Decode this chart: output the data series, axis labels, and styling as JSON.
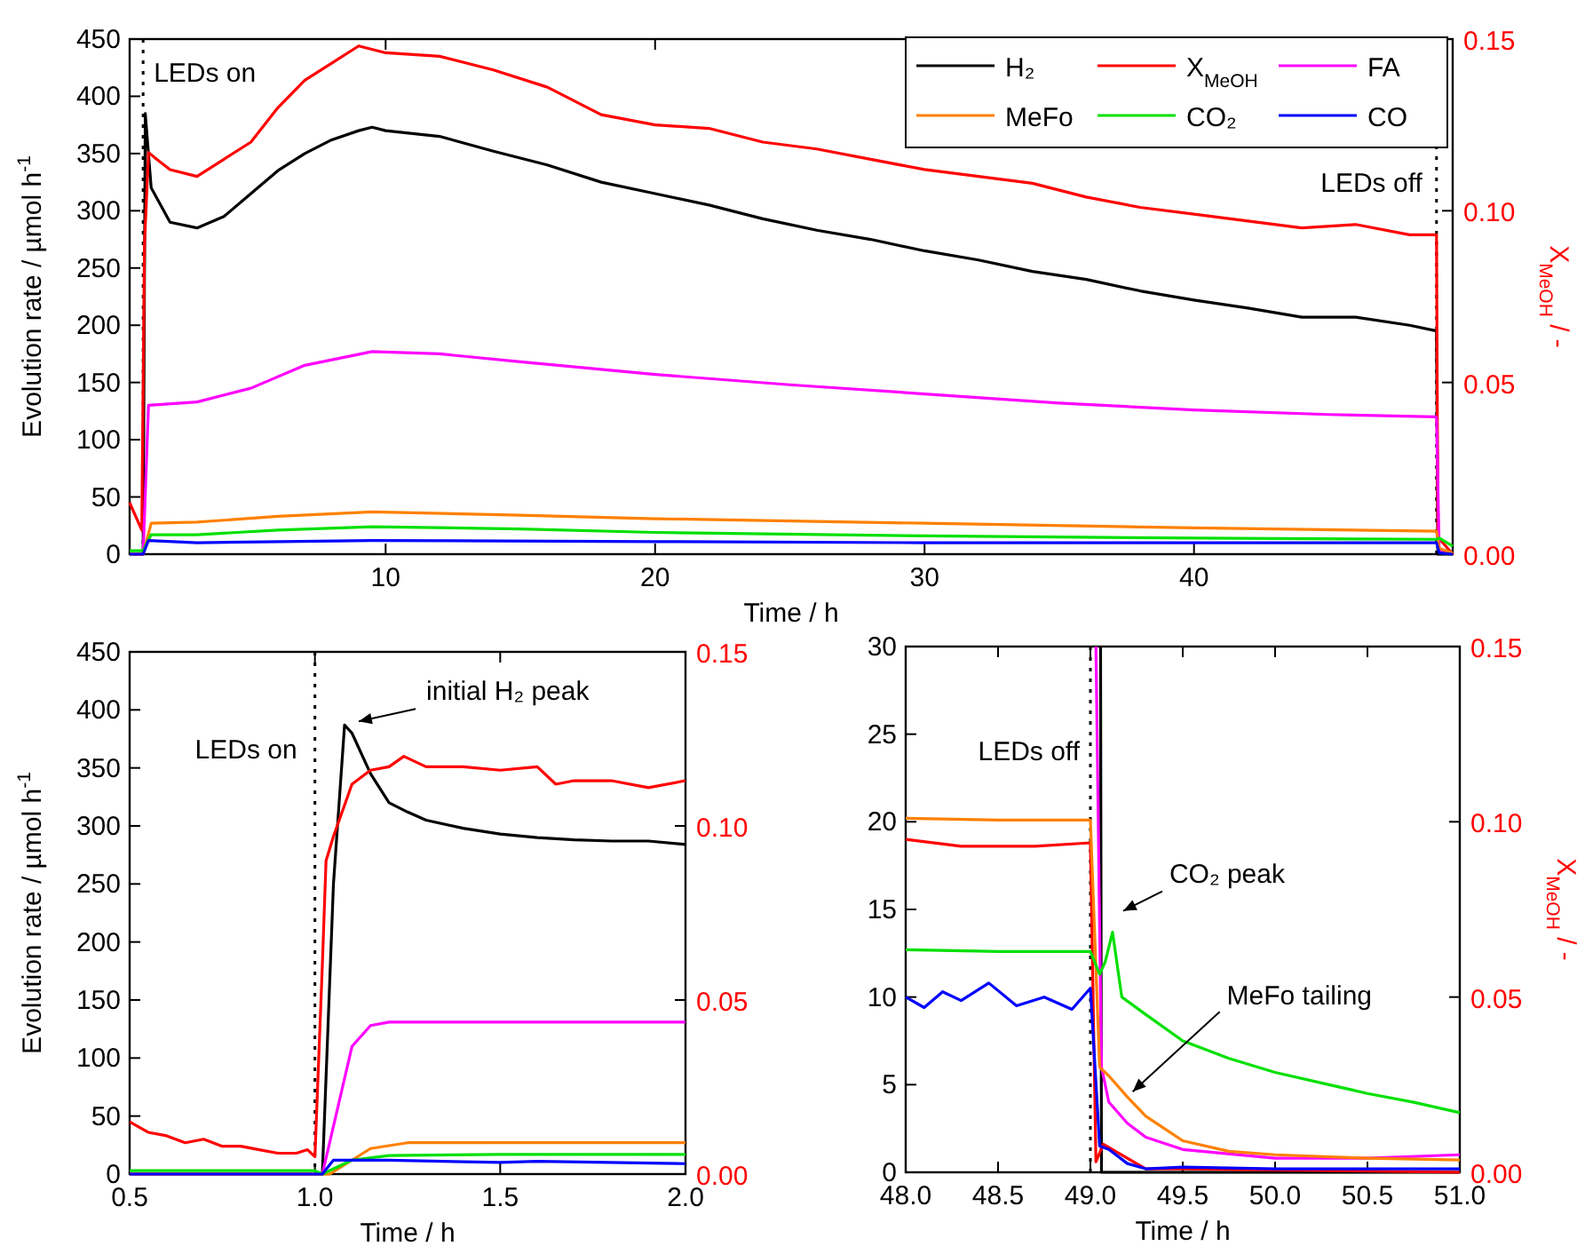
{
  "chart_data": [
    {
      "type": "line",
      "xlabel": "Time / h",
      "ylabel": "Evolution rate / µmol h$^{-1}$",
      "y2label": "X$_{MeOH}$ / -",
      "xlim": [
        0.5,
        49.6
      ],
      "ylim": [
        0,
        450
      ],
      "y2lim": [
        0,
        0.15
      ],
      "xticks": [
        10,
        20,
        30,
        40
      ],
      "yticks": [
        0,
        50,
        100,
        150,
        200,
        250,
        300,
        350,
        400,
        450
      ],
      "y2ticks": [
        {
          "value": 0,
          "label": "0.00"
        },
        {
          "value": 0.05,
          "label": "0.05"
        },
        {
          "value": 0.1,
          "label": "0.10"
        },
        {
          "value": 0.15,
          "label": "0.15"
        }
      ],
      "legend": "top right",
      "ref_lines": [
        {
          "axis": "x",
          "value": 1,
          "label": "LEDs on",
          "line_style": "dotted"
        },
        {
          "axis": "x",
          "value": 49,
          "label": "LEDs off",
          "line_style": "dotted"
        }
      ],
      "series": [
        {
          "name": "H₂",
          "color": "#000000",
          "x": [
            0.5,
            0.9,
            1.0,
            1.08,
            1.3,
            2,
            3,
            4,
            5,
            6,
            7,
            8,
            9,
            9.5,
            10,
            12,
            14,
            16,
            18,
            20,
            22,
            24,
            26,
            28,
            30,
            32,
            34,
            36,
            38,
            40,
            42,
            44,
            46,
            48,
            49,
            49.05,
            49.6
          ],
          "values": [
            0,
            0,
            0,
            385,
            320,
            290,
            285,
            295,
            315,
            335,
            350,
            362,
            370,
            373,
            370,
            365,
            352,
            340,
            325,
            315,
            305,
            293,
            283,
            275,
            265,
            257,
            247,
            240,
            230,
            222,
            215,
            207,
            207,
            200,
            195,
            0,
            0
          ]
        },
        {
          "name": "X$_{MeOH}$",
          "color": "#ff0000",
          "axis": "y2",
          "x": [
            0.5,
            0.95,
            1.05,
            1.2,
            1.5,
            2,
            3,
            4,
            5,
            6,
            7,
            8,
            9,
            10,
            12,
            14,
            16,
            18,
            20,
            22,
            24,
            26,
            28,
            30,
            32,
            34,
            36,
            38,
            40,
            42,
            44,
            46,
            48,
            49,
            49.05,
            49.6
          ],
          "values": [
            0.015,
            0.007,
            0.09,
            0.117,
            0.115,
            0.112,
            0.11,
            0.115,
            0.12,
            0.13,
            0.138,
            0.143,
            0.148,
            0.146,
            0.145,
            0.141,
            0.136,
            0.128,
            0.125,
            0.124,
            0.12,
            0.118,
            0.115,
            0.112,
            0.11,
            0.108,
            0.104,
            0.101,
            0.099,
            0.097,
            0.095,
            0.096,
            0.093,
            0.093,
            0.005,
            0
          ]
        },
        {
          "name": "FA",
          "color": "#ff00ff",
          "x": [
            0.5,
            1,
            1.2,
            3,
            5,
            7,
            9.5,
            12,
            15,
            20,
            25,
            30,
            35,
            40,
            45,
            49,
            49.1,
            49.6
          ],
          "values": [
            0,
            0,
            130,
            133,
            145,
            165,
            177,
            175,
            168,
            157,
            148,
            140,
            132,
            126,
            122,
            120,
            3,
            1
          ]
        },
        {
          "name": "MeFo",
          "color": "#ff8000",
          "x": [
            0.5,
            1,
            1.3,
            3,
            6,
            9.5,
            15,
            20,
            30,
            40,
            49,
            49.1,
            49.6
          ],
          "values": [
            0,
            0,
            27,
            28,
            33,
            37,
            34,
            31,
            27,
            23,
            20,
            5,
            1
          ]
        },
        {
          "name": "CO₂",
          "color": "#00e000",
          "x": [
            0.5,
            1,
            1.3,
            3,
            6,
            9.5,
            15,
            20,
            30,
            40,
            49,
            49.1,
            49.6
          ],
          "values": [
            3,
            3,
            17,
            17,
            21,
            24,
            22,
            19,
            16,
            14,
            13,
            14,
            7
          ]
        },
        {
          "name": "CO",
          "color": "#0000ff",
          "x": [
            0.5,
            1,
            1.2,
            3,
            9.5,
            20,
            30,
            40,
            49,
            49.1,
            49.6
          ],
          "values": [
            0,
            0,
            12,
            10,
            12,
            11,
            10,
            10,
            10,
            1,
            0
          ]
        }
      ]
    },
    {
      "type": "line",
      "xlabel": "Time / h",
      "ylabel": "Evolution rate / µmol h$^{-1}$",
      "xlim": [
        0.5,
        2.0
      ],
      "ylim": [
        0,
        450
      ],
      "y2lim": [
        0,
        0.15
      ],
      "xticks": [
        {
          "value": 0.5,
          "label": "0.5"
        },
        {
          "value": 1,
          "label": "1.0"
        },
        {
          "value": 1.5,
          "label": "1.5"
        },
        {
          "value": 2,
          "label": "2.0"
        }
      ],
      "yticks": [
        0,
        50,
        100,
        150,
        200,
        250,
        300,
        350,
        400,
        450
      ],
      "y2ticks": [
        {
          "value": 0,
          "label": "0.00"
        },
        {
          "value": 0.05,
          "label": "0.05"
        },
        {
          "value": 0.1,
          "label": "0.10"
        },
        {
          "value": 0.15,
          "label": "0.15"
        }
      ],
      "ref_lines": [
        {
          "axis": "x",
          "value": 1,
          "label": "LEDs on",
          "line_style": "dotted"
        }
      ],
      "annotations": [
        {
          "text": "initial H₂ peak",
          "x": 1.08,
          "y": 387
        }
      ],
      "series": [
        {
          "color": "#000000",
          "x": [
            0.5,
            1.0,
            1.02,
            1.05,
            1.08,
            1.1,
            1.15,
            1.2,
            1.25,
            1.3,
            1.4,
            1.5,
            1.6,
            1.7,
            1.8,
            1.9,
            2.0
          ],
          "values": [
            0,
            0,
            0,
            250,
            387,
            380,
            345,
            320,
            312,
            305,
            298,
            293,
            290,
            288,
            287,
            287,
            284
          ]
        },
        {
          "color": "#ff0000",
          "axis": "y2",
          "x": [
            0.5,
            0.55,
            0.6,
            0.65,
            0.7,
            0.75,
            0.8,
            0.85,
            0.9,
            0.95,
            0.98,
            1.0,
            1.02,
            1.03,
            1.05,
            1.1,
            1.15,
            1.2,
            1.24,
            1.3,
            1.4,
            1.5,
            1.6,
            1.65,
            1.7,
            1.8,
            1.9,
            2.0
          ],
          "values": [
            0.015,
            0.012,
            0.011,
            0.009,
            0.01,
            0.008,
            0.008,
            0.007,
            0.006,
            0.006,
            0.007,
            0.005,
            0.06,
            0.09,
            0.097,
            0.112,
            0.116,
            0.117,
            0.12,
            0.117,
            0.117,
            0.116,
            0.117,
            0.112,
            0.113,
            0.113,
            0.111,
            0.113
          ]
        },
        {
          "color": "#ff00ff",
          "x": [
            0.5,
            1.02,
            1.1,
            1.15,
            1.2,
            1.5,
            2
          ],
          "values": [
            0,
            0,
            110,
            128,
            131,
            131,
            131
          ]
        },
        {
          "color": "#ff8000",
          "x": [
            0.5,
            1.04,
            1.15,
            1.25,
            1.5,
            2
          ],
          "values": [
            0,
            0,
            22,
            27,
            27,
            27
          ]
        },
        {
          "color": "#00e000",
          "x": [
            0.5,
            1.0,
            1.02,
            1.1,
            1.2,
            1.5,
            2
          ],
          "values": [
            3,
            3,
            0,
            12,
            16,
            17,
            17
          ]
        },
        {
          "color": "#0000ff",
          "x": [
            0.5,
            1.02,
            1.05,
            1.2,
            1.5,
            1.6,
            2
          ],
          "values": [
            0,
            0,
            12,
            12,
            10,
            11,
            9
          ]
        }
      ]
    },
    {
      "type": "line",
      "xlabel": "Time / h",
      "y2label": "X$_{MeOH}$ / -",
      "xlim": [
        48,
        51
      ],
      "ylim": [
        0,
        30
      ],
      "y2lim": [
        0,
        0.15
      ],
      "xticks": [
        {
          "value": 48,
          "label": "48.0"
        },
        {
          "value": 48.5,
          "label": "48.5"
        },
        {
          "value": 49,
          "label": "49.0"
        },
        {
          "value": 49.5,
          "label": "49.5"
        },
        {
          "value": 50,
          "label": "50.0"
        },
        {
          "value": 50.5,
          "label": "50.5"
        },
        {
          "value": 51,
          "label": "51.0"
        }
      ],
      "yticks": [
        0,
        5,
        10,
        15,
        20,
        25,
        30
      ],
      "y2ticks": [
        {
          "value": 0,
          "label": "0.00"
        },
        {
          "value": 0.05,
          "label": "0.05"
        },
        {
          "value": 0.1,
          "label": "0.10"
        },
        {
          "value": 0.15,
          "label": "0.15"
        }
      ],
      "ref_lines": [
        {
          "axis": "x",
          "value": 49,
          "label": "LEDs off",
          "line_style": "dotted"
        }
      ],
      "annotations": [
        {
          "text": "CO₂ peak",
          "x": 49.12,
          "y": 13.7
        },
        {
          "text": "MeFo tailing",
          "x": 49.2,
          "y": 4.3
        }
      ],
      "series": [
        {
          "color": "#000000",
          "x": [
            49.055,
            49.06,
            51
          ],
          "values": [
            30,
            0,
            0
          ]
        },
        {
          "color": "#ff0000",
          "axis": "y2",
          "x": [
            48,
            48.3,
            48.5,
            48.7,
            49,
            49.03,
            49.07,
            49.2,
            49.3,
            49.5,
            51
          ],
          "values": [
            0.095,
            0.093,
            0.093,
            0.093,
            0.094,
            0.003,
            0.008,
            0.004,
            0.001,
            0.001,
            0
          ]
        },
        {
          "color": "#ff00ff",
          "x": [
            49.03,
            49.06,
            49.1,
            49.2,
            49.3,
            49.5,
            50,
            50.5,
            51
          ],
          "values": [
            30,
            6,
            4,
            2.8,
            2,
            1.3,
            0.8,
            0.8,
            1
          ]
        },
        {
          "color": "#ff8000",
          "x": [
            48,
            48.5,
            49,
            49.05,
            49.1,
            49.2,
            49.3,
            49.5,
            49.75,
            50,
            50.5,
            51
          ],
          "values": [
            20.2,
            20.1,
            20.1,
            6,
            5.5,
            4.3,
            3.2,
            1.8,
            1.2,
            1,
            0.8,
            0.7
          ]
        },
        {
          "color": "#00e000",
          "x": [
            48,
            48.5,
            49,
            49.05,
            49.08,
            49.12,
            49.17,
            49.3,
            49.5,
            49.75,
            50,
            50.25,
            50.5,
            50.75,
            51
          ],
          "values": [
            12.7,
            12.6,
            12.6,
            11.3,
            12,
            13.7,
            10,
            9,
            7.5,
            6.5,
            5.7,
            5.1,
            4.5,
            4,
            3.4
          ]
        },
        {
          "color": "#0000ff",
          "x": [
            48,
            48.1,
            48.2,
            48.3,
            48.45,
            48.6,
            48.75,
            48.9,
            49,
            49.05,
            49.1,
            49.2,
            49.3,
            49.5,
            50,
            50.5,
            51
          ],
          "values": [
            10,
            9.4,
            10.3,
            9.8,
            10.8,
            9.5,
            10,
            9.3,
            10.5,
            1.5,
            1.3,
            0.5,
            0.2,
            0.3,
            0.2,
            0.2,
            0.2
          ]
        }
      ]
    }
  ]
}
